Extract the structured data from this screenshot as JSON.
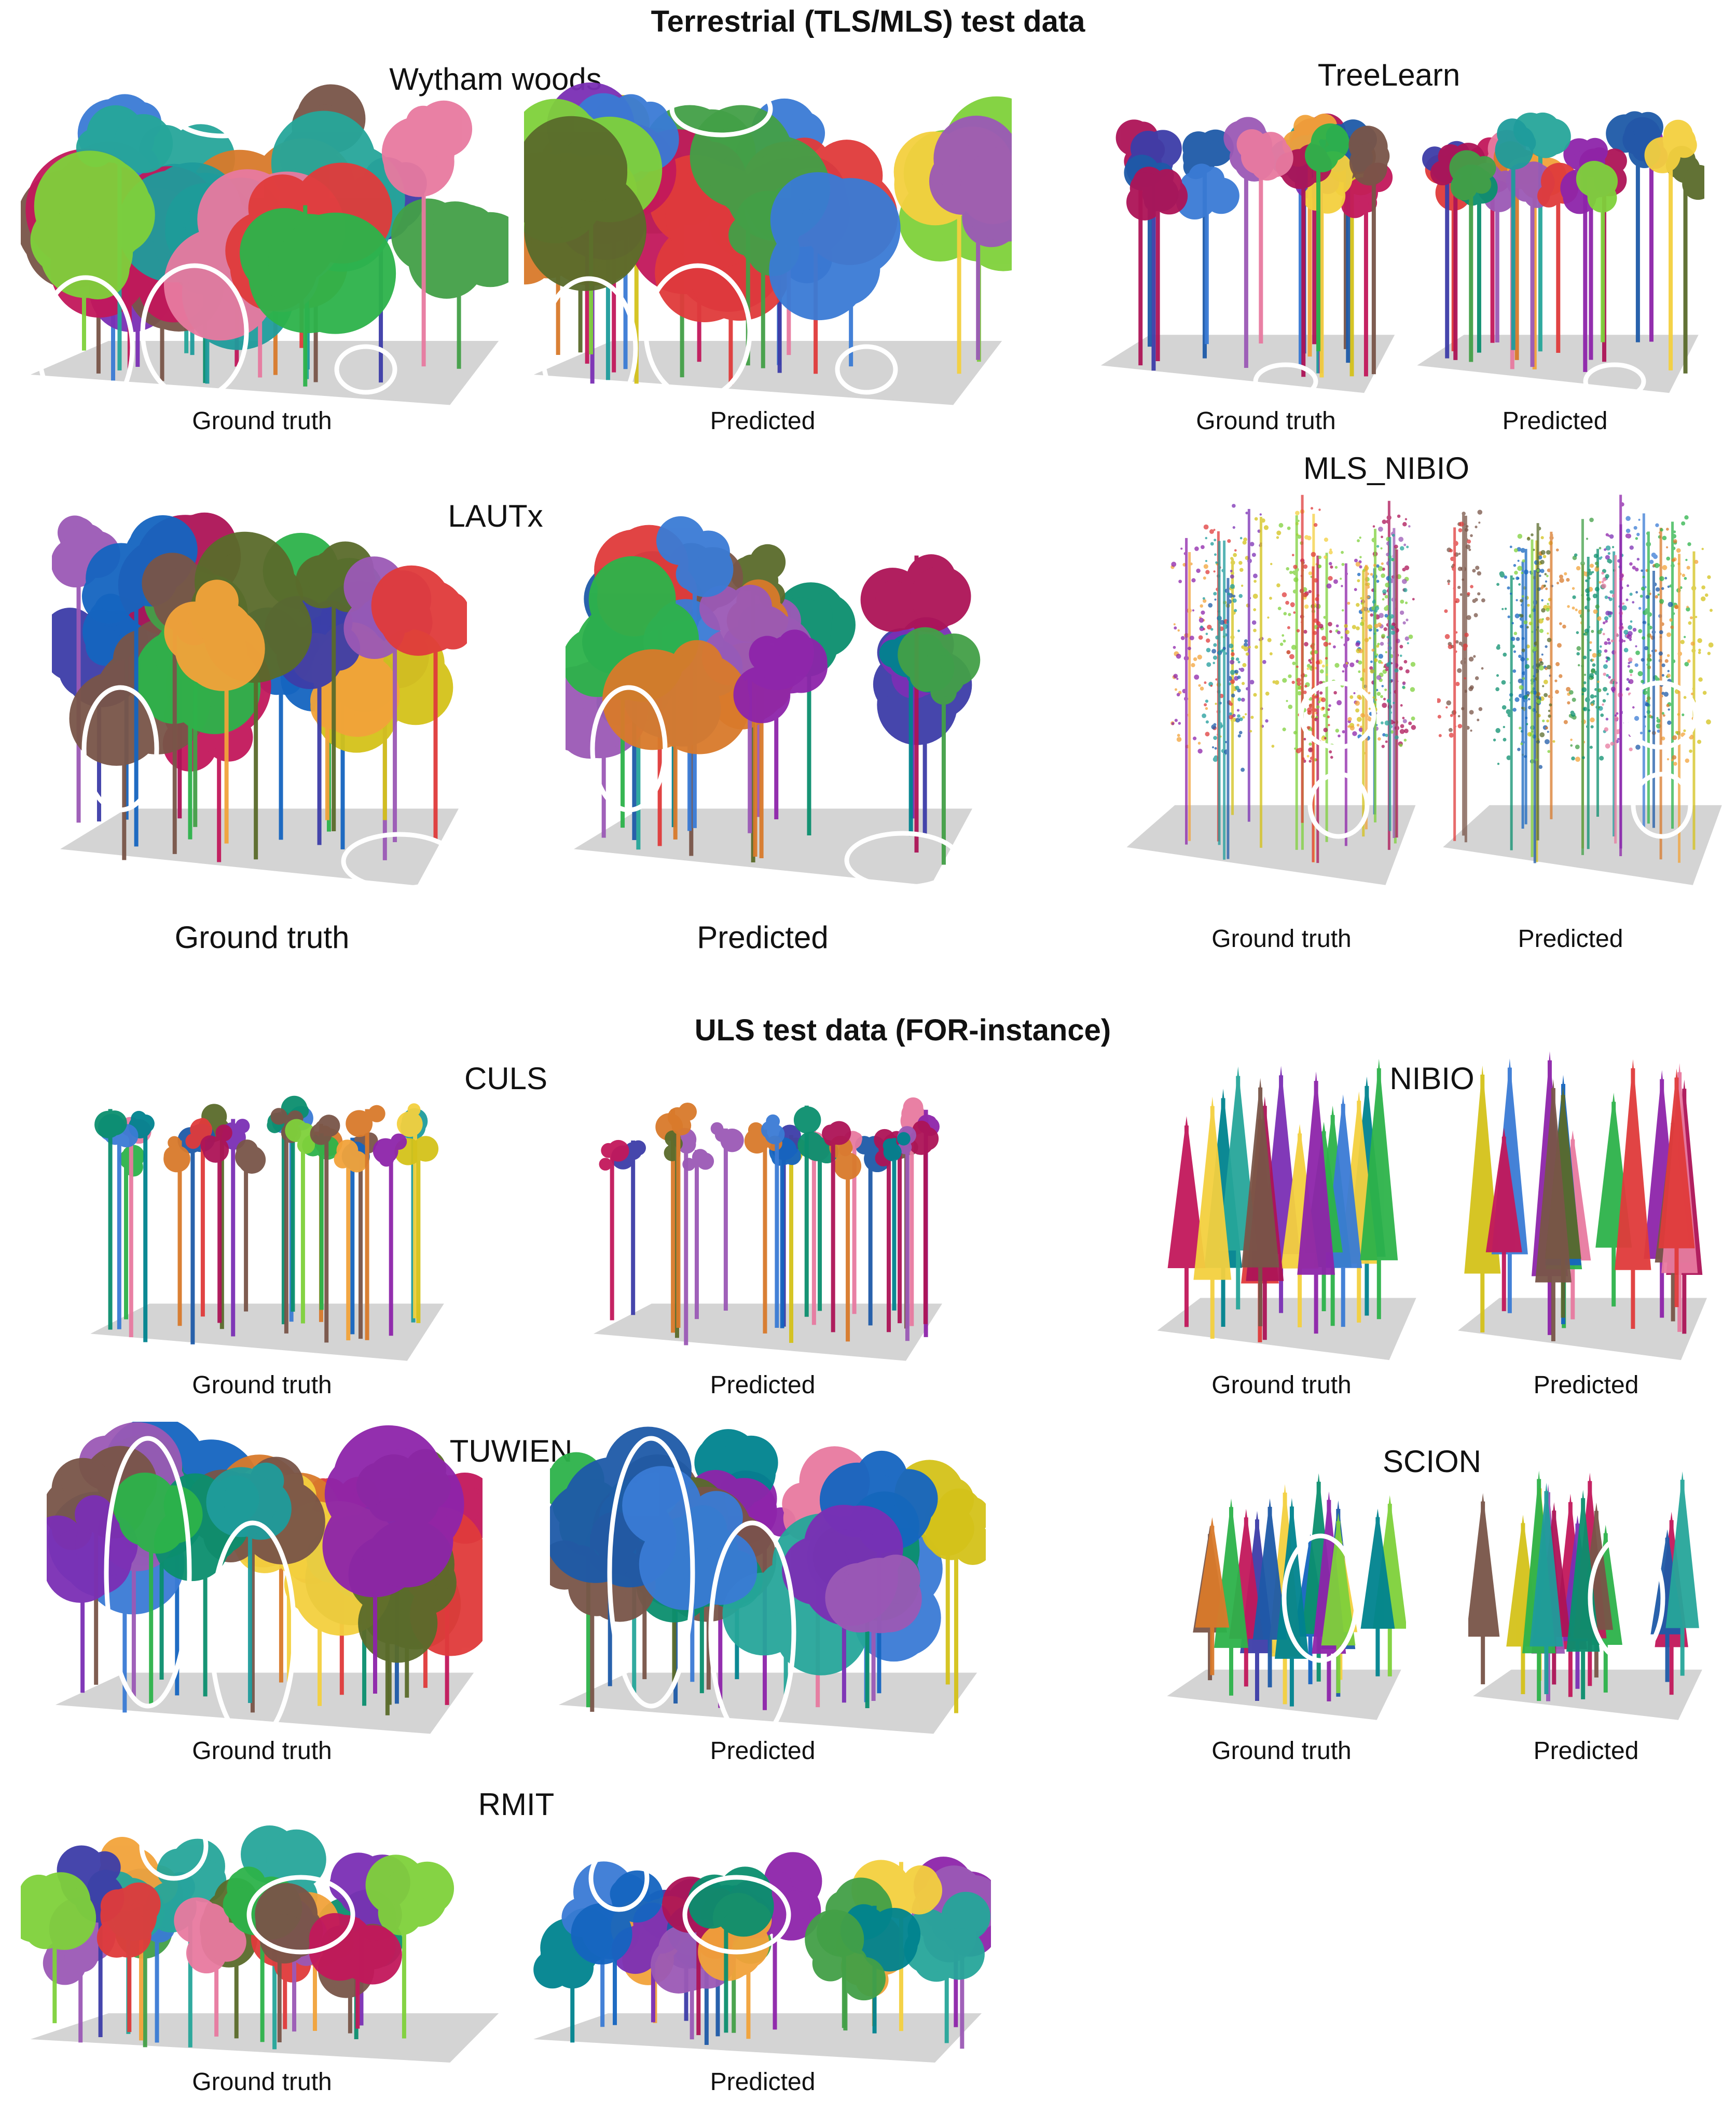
{
  "sections": {
    "terrestrial": "Terrestrial (TLS/MLS) test data",
    "uls": "ULS test data (FOR-instance)"
  },
  "datasets": {
    "wytham": "Wytham woods",
    "treelearn": "TreeLearn",
    "lautx": "LAUTx",
    "mls_nibio": "MLS_NIBIO",
    "culs": "CULS",
    "nibio": "NIBIO",
    "tuwien": "TUWIEN",
    "scion": "SCION",
    "rmit": "RMIT"
  },
  "captions": {
    "ground_truth": "Ground truth",
    "predicted": "Predicted"
  },
  "palette": [
    "#2db34a",
    "#7fd13b",
    "#1e5aa8",
    "#3a7bd5",
    "#d97a2b",
    "#7b2fb5",
    "#1f9c9c",
    "#c2185b",
    "#e03b3b",
    "#d4c21a",
    "#0b8f6e",
    "#3d3da8",
    "#9b59b6",
    "#e87aa0",
    "#5a6b2b",
    "#f2a33a",
    "#26a69a",
    "#1565c0",
    "#8e24aa",
    "#ad1457",
    "#43a047",
    "#00838f",
    "#795548",
    "#f4d03f"
  ],
  "ground_color": "#c9c9c9",
  "highlight_color": "#ffffff"
}
